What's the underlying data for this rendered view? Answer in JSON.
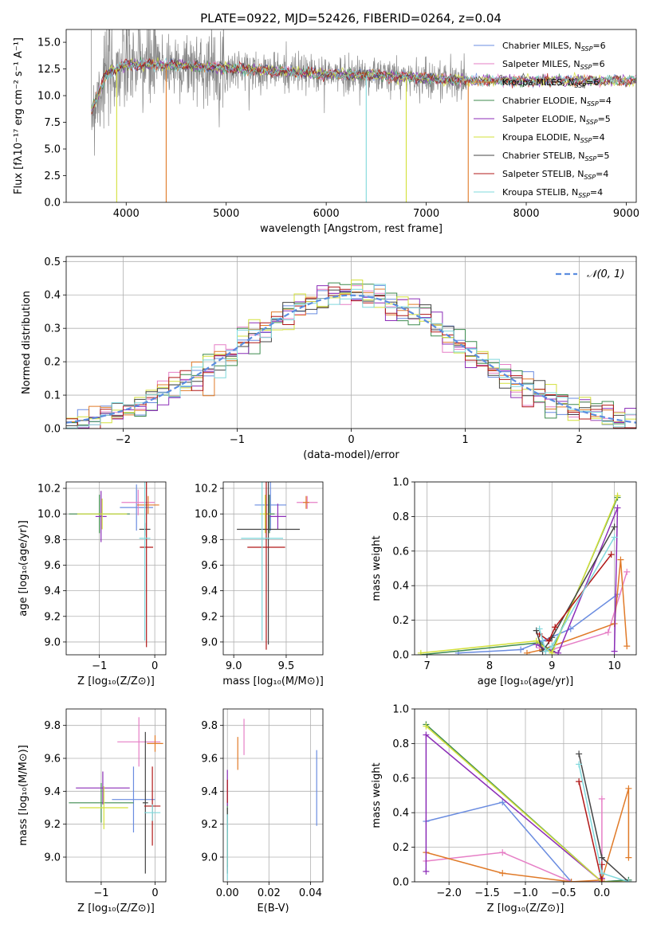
{
  "title": "PLATE=0922, MJD=52426, FIBERID=0264, z=0.04",
  "colors": {
    "Chabrier MILES": "#6a8ce0",
    "Salpeter MILES": "#e67fc6",
    "Kroupa MILES": "#e07a28",
    "Chabrier ELODIE": "#3d8a4e",
    "Salpeter ELODIE": "#8c2eb8",
    "Kroupa ELODIE": "#d3e03a",
    "Chabrier STELIB": "#444444",
    "Salpeter STELIB": "#b01818",
    "Kroupa STELIB": "#7fd8dc",
    "data": "#888888",
    "normal": "#5b8de0",
    "grid": "#b0b0b0"
  },
  "chart_data": [
    {
      "id": "spectrum",
      "type": "line",
      "title": "PLATE=0922, MJD=52426, FIBERID=0264, z=0.04",
      "xlabel": "wavelength [Angstrom, rest frame]",
      "ylabel": "Flux [fλ10⁻¹⁷ erg cm⁻² s⁻¹ A⁻¹]",
      "xlim": [
        3400,
        9100
      ],
      "ylim": [
        0,
        16.2
      ],
      "xticks": [
        4000,
        5000,
        6000,
        7000,
        8000,
        9000
      ],
      "yticks": [
        0.0,
        2.5,
        5.0,
        7.5,
        10.0,
        12.5,
        15.0
      ],
      "ytick_labels": [
        "0.0",
        "2.5",
        "5.0",
        "7.5",
        "10.0",
        "12.5",
        "15.0"
      ],
      "legend_position": "top-right",
      "legend": [
        {
          "name": "Chabrier MILES, N",
          "sub": "SSP",
          "tail": "=6"
        },
        {
          "name": "Salpeter MILES, N",
          "sub": "SSP",
          "tail": "=6"
        },
        {
          "name": "Kroupa MILES, N",
          "sub": "SSP",
          "tail": "=6"
        },
        {
          "name": "Chabrier ELODIE, N",
          "sub": "SSP",
          "tail": "=4"
        },
        {
          "name": "Salpeter ELODIE, N",
          "sub": "SSP",
          "tail": "=5"
        },
        {
          "name": "Kroupa ELODIE, N",
          "sub": "SSP",
          "tail": "=4"
        },
        {
          "name": "Chabrier STELIB, N",
          "sub": "SSP",
          "tail": "=5"
        },
        {
          "name": "Salpeter STELIB, N",
          "sub": "SSP",
          "tail": "=4"
        },
        {
          "name": "Kroupa STELIB, N",
          "sub": "SSP",
          "tail": "=4"
        }
      ],
      "continuum": {
        "x": [
          3650,
          3800,
          4000,
          4300,
          4600,
          5000,
          5500,
          6000,
          6500,
          7000,
          7400
        ],
        "y": [
          8.5,
          12.0,
          12.9,
          12.9,
          12.8,
          12.6,
          12.3,
          12.0,
          11.9,
          11.6,
          11.4
        ]
      },
      "data_extent": [
        3650,
        7400
      ],
      "model_extent": [
        3650,
        9100
      ],
      "drop_lines": [
        {
          "x": 3905,
          "series": "Kroupa ELODIE"
        },
        {
          "x": 4400,
          "series": "Kroupa MILES"
        },
        {
          "x": 6400,
          "series": "Kroupa STELIB"
        },
        {
          "x": 6800,
          "series": "Kroupa ELODIE"
        },
        {
          "x": 7420,
          "series": "Kroupa MILES"
        }
      ]
    },
    {
      "id": "residuals",
      "type": "histogram",
      "xlabel": "(data-model)/error",
      "ylabel": "Normed distribution",
      "xlim": [
        -2.5,
        2.5
      ],
      "ylim": [
        0,
        0.515
      ],
      "xticks": [
        -2,
        -1,
        0,
        1,
        2
      ],
      "xtick_labels": [
        "−2",
        "−1",
        "0",
        "1",
        "2"
      ],
      "yticks": [
        0.0,
        0.1,
        0.2,
        0.3,
        0.4,
        0.5
      ],
      "ytick_labels": [
        "0.0",
        "0.1",
        "0.2",
        "0.3",
        "0.4",
        "0.5"
      ],
      "bin_width": 0.1,
      "legend": "𝒩(0, 1)",
      "legend_position": "top-right"
    },
    {
      "id": "age_vs_Z",
      "type": "errorbar",
      "xlabel": "Z [log₁₀(Z/Z⊙)]",
      "ylabel": "age  [log₁₀(age/yr)]",
      "xlim": [
        -1.6,
        0.2
      ],
      "ylim": [
        8.9,
        10.25
      ],
      "xticks": [
        -1,
        0
      ],
      "xtick_labels": [
        "−1",
        "0"
      ],
      "yticks": [
        9.0,
        9.2,
        9.4,
        9.6,
        9.8,
        10.0,
        10.2
      ],
      "ytick_labels": [
        "9.0",
        "9.2",
        "9.4",
        "9.6",
        "9.8",
        "10.0",
        "10.2"
      ],
      "points": [
        {
          "series": "Chabrier MILES",
          "x": -0.33,
          "y": 10.05,
          "xerr": 0.3,
          "yerr": 0.18
        },
        {
          "series": "Salpeter MILES",
          "x": -0.3,
          "y": 10.09,
          "xerr": 0.3,
          "yerr": 0.1
        },
        {
          "series": "Kroupa MILES",
          "x": -0.12,
          "y": 10.07,
          "xerr": 0.2,
          "yerr": 0.07
        },
        {
          "series": "Chabrier ELODIE",
          "x": -1.0,
          "y": 10.0,
          "xerr": 0.55,
          "yerr": 0.15
        },
        {
          "series": "Salpeter ELODIE",
          "x": -0.97,
          "y": 9.98,
          "xerr": 0.1,
          "yerr": 0.2
        },
        {
          "series": "Kroupa ELODIE",
          "x": -0.95,
          "y": 10.0,
          "xerr": 0.45,
          "yerr": 0.12
        },
        {
          "series": "Chabrier STELIB",
          "x": -0.18,
          "y": 9.88,
          "xerr": 0.1,
          "yerr": 0.05
        },
        {
          "series": "Salpeter STELIB",
          "x": -0.15,
          "y": 9.74,
          "xerr": 0.12,
          "yerr": 0.78
        },
        {
          "series": "Kroupa STELIB",
          "x": -0.18,
          "y": 9.81,
          "xerr": 0.1,
          "yerr": 0.8
        }
      ]
    },
    {
      "id": "age_vs_mass",
      "type": "errorbar",
      "xlabel": "mass [log₁₀(M/M⊙)]",
      "ylabel": "",
      "xlim": [
        8.9,
        9.85
      ],
      "ylim": [
        8.9,
        10.25
      ],
      "xticks": [
        9.0,
        9.5
      ],
      "xtick_labels": [
        "9.0",
        "9.5"
      ],
      "yticks": [
        9.0,
        9.2,
        9.4,
        9.6,
        9.8,
        10.0,
        10.2
      ],
      "ytick_labels": [
        "9.0",
        "9.2",
        "9.4",
        "9.6",
        "9.8",
        "10.0",
        "10.2"
      ],
      "points": [
        {
          "series": "Chabrier MILES",
          "x": 9.35,
          "y": 10.07,
          "xerr": 0.15,
          "yerr": 0.2
        },
        {
          "series": "Salpeter MILES",
          "x": 9.7,
          "y": 10.09,
          "xerr": 0.1,
          "yerr": 0.05
        },
        {
          "series": "Kroupa MILES",
          "x": 9.69,
          "y": 10.09,
          "xerr": 0.03,
          "yerr": 0.05
        },
        {
          "series": "Chabrier ELODIE",
          "x": 9.34,
          "y": 10.0,
          "xerr": 0.05,
          "yerr": 0.15
        },
        {
          "series": "Salpeter ELODIE",
          "x": 9.42,
          "y": 9.98,
          "xerr": 0.08,
          "yerr": 0.1
        },
        {
          "series": "Kroupa ELODIE",
          "x": 9.3,
          "y": 10.0,
          "xerr": 0.05,
          "yerr": 0.15
        },
        {
          "series": "Chabrier STELIB",
          "x": 9.33,
          "y": 9.88,
          "xerr": 0.3,
          "yerr": 0.9
        },
        {
          "series": "Salpeter STELIB",
          "x": 9.31,
          "y": 9.74,
          "xerr": 0.18,
          "yerr": 0.8
        },
        {
          "series": "Kroupa STELIB",
          "x": 9.27,
          "y": 9.81,
          "xerr": 0.2,
          "yerr": 0.8
        }
      ]
    },
    {
      "id": "weight_vs_age",
      "type": "line",
      "xlabel": "age  [log₁₀(age/yr)]",
      "ylabel": "mass weight",
      "xlim": [
        6.8,
        10.35
      ],
      "ylim": [
        0,
        1.0
      ],
      "xticks": [
        7,
        8,
        9,
        10
      ],
      "xtick_labels": [
        "7",
        "8",
        "9",
        "10"
      ],
      "yticks": [
        0.0,
        0.2,
        0.4,
        0.6,
        0.8,
        1.0
      ],
      "ytick_labels": [
        "0.0",
        "0.2",
        "0.4",
        "0.6",
        "0.8",
        "1.0"
      ],
      "series": [
        {
          "name": "Chabrier MILES",
          "x": [
            7.5,
            8.5,
            8.85,
            9.3,
            10.05
          ],
          "y": [
            0.01,
            0.03,
            0.08,
            0.15,
            0.35
          ]
        },
        {
          "name": "Salpeter MILES",
          "x": [
            8.8,
            9.0,
            9.9,
            10.2
          ],
          "y": [
            0.04,
            0.03,
            0.13,
            0.48
          ]
        },
        {
          "name": "Kroupa MILES",
          "x": [
            8.6,
            8.85,
            10.0,
            10.1,
            10.2
          ],
          "y": [
            0.01,
            0.03,
            0.18,
            0.55,
            0.05
          ]
        },
        {
          "name": "Chabrier ELODIE",
          "x": [
            6.9,
            8.8,
            9.0,
            10.05
          ],
          "y": [
            0.0,
            0.07,
            0.02,
            0.91
          ]
        },
        {
          "name": "Salpeter ELODIE",
          "x": [
            8.75,
            8.9,
            9.1,
            10.05,
            10.0
          ],
          "y": [
            0.06,
            0.03,
            0.01,
            0.85,
            0.02
          ]
        },
        {
          "name": "Kroupa ELODIE",
          "x": [
            6.9,
            8.75,
            9.0,
            10.05
          ],
          "y": [
            0.01,
            0.08,
            0.01,
            0.92
          ]
        },
        {
          "name": "Chabrier STELIB",
          "x": [
            8.75,
            8.85,
            9.0,
            10.0
          ],
          "y": [
            0.14,
            0.02,
            0.1,
            0.74
          ]
        },
        {
          "name": "Salpeter STELIB",
          "x": [
            8.8,
            8.95,
            9.05,
            9.95
          ],
          "y": [
            0.12,
            0.08,
            0.16,
            0.58
          ]
        },
        {
          "name": "Kroupa STELIB",
          "x": [
            8.8,
            8.9,
            9.0,
            10.0
          ],
          "y": [
            0.15,
            0.02,
            0.05,
            0.68
          ]
        }
      ]
    },
    {
      "id": "mass_vs_Z",
      "type": "errorbar",
      "xlabel": "Z [log₁₀(Z/Z⊙)]",
      "ylabel": "mass [log₁₀(M/M⊙)]",
      "xlim": [
        -1.65,
        0.2
      ],
      "ylim": [
        8.85,
        9.9
      ],
      "xticks": [
        -1,
        0
      ],
      "xtick_labels": [
        "−1",
        "0"
      ],
      "yticks": [
        9.0,
        9.2,
        9.4,
        9.6,
        9.8
      ],
      "ytick_labels": [
        "9.0",
        "9.2",
        "9.4",
        "9.6",
        "9.8"
      ],
      "points": [
        {
          "series": "Chabrier MILES",
          "x": -0.4,
          "y": 9.35,
          "xerr": 0.4,
          "yerr": 0.2
        },
        {
          "series": "Salpeter MILES",
          "x": -0.3,
          "y": 9.7,
          "xerr": 0.4,
          "yerr": 0.15
        },
        {
          "series": "Kroupa MILES",
          "x": 0.0,
          "y": 9.69,
          "xerr": 0.15,
          "yerr": 0.05
        },
        {
          "series": "Chabrier ELODIE",
          "x": -1.0,
          "y": 9.33,
          "xerr": 0.6,
          "yerr": 0.12
        },
        {
          "series": "Salpeter ELODIE",
          "x": -0.97,
          "y": 9.42,
          "xerr": 0.5,
          "yerr": 0.1
        },
        {
          "series": "Kroupa ELODIE",
          "x": -0.95,
          "y": 9.3,
          "xerr": 0.45,
          "yerr": 0.13
        },
        {
          "series": "Chabrier STELIB",
          "x": -0.18,
          "y": 9.33,
          "xerr": 0.05,
          "yerr": 0.43
        },
        {
          "series": "Salpeter STELIB",
          "x": -0.05,
          "y": 9.31,
          "xerr": 0.15,
          "yerr": 0.24
        },
        {
          "series": "Kroupa STELIB",
          "x": -0.05,
          "y": 9.27,
          "xerr": 0.15,
          "yerr": 0.05
        }
      ]
    },
    {
      "id": "mass_vs_ebv",
      "type": "errorbar",
      "xlabel": "E(B-V)",
      "ylabel": "",
      "xlim": [
        -0.002,
        0.046
      ],
      "ylim": [
        8.85,
        9.9
      ],
      "xticks": [
        0.0,
        0.02,
        0.04
      ],
      "xtick_labels": [
        "0.00",
        "0.02",
        "0.04"
      ],
      "yticks": [
        9.0,
        9.2,
        9.4,
        9.6,
        9.8
      ],
      "ytick_labels": [
        "9.0",
        "9.2",
        "9.4",
        "9.6",
        "9.8"
      ],
      "points": [
        {
          "series": "Chabrier MILES",
          "x": 0.043,
          "y": 9.42,
          "xerr": 0,
          "yerr": 0.23
        },
        {
          "series": "Salpeter MILES",
          "x": 0.008,
          "y": 9.73,
          "xerr": 0,
          "yerr": 0.11
        },
        {
          "series": "Kroupa MILES",
          "x": 0.005,
          "y": 9.63,
          "xerr": 0,
          "yerr": 0.1
        },
        {
          "series": "Chabrier ELODIE",
          "x": 0.0,
          "y": 9.14,
          "xerr": 0,
          "yerr": 0.2
        },
        {
          "series": "Salpeter ELODIE",
          "x": 0.0,
          "y": 9.42,
          "xerr": 0,
          "yerr": 0.11
        },
        {
          "series": "Kroupa ELODIE",
          "x": 0.0,
          "y": 9.05,
          "xerr": 0,
          "yerr": 0.1
        },
        {
          "series": "Chabrier STELIB",
          "x": 0.0,
          "y": 9.1,
          "xerr": 0,
          "yerr": 0.2
        },
        {
          "series": "Salpeter STELIB",
          "x": 0.0,
          "y": 9.4,
          "xerr": 0,
          "yerr": 0.07
        },
        {
          "series": "Kroupa STELIB",
          "x": 0.0,
          "y": 9.06,
          "xerr": 0,
          "yerr": 0.2
        }
      ]
    },
    {
      "id": "weight_vs_Z",
      "type": "line",
      "xlabel": "Z [log₁₀(Z/Z⊙)]",
      "ylabel": "mass weight",
      "xlim": [
        -2.45,
        0.45
      ],
      "ylim": [
        0,
        1.0
      ],
      "xticks": [
        -2.0,
        -1.5,
        -1.0,
        -0.5,
        0.0
      ],
      "xtick_labels": [
        "−2.0",
        "−1.5",
        "−1.0",
        "−0.5",
        "0.0"
      ],
      "yticks": [
        0.0,
        0.2,
        0.4,
        0.6,
        0.8,
        1.0
      ],
      "ytick_labels": [
        "0.0",
        "0.2",
        "0.4",
        "0.6",
        "0.8",
        "1.0"
      ],
      "series": [
        {
          "name": "Chabrier MILES",
          "x": [
            -2.3,
            -1.3,
            -0.4,
            0.0,
            0.35
          ],
          "y": [
            0.35,
            0.46,
            0.0,
            0.0,
            0.01
          ]
        },
        {
          "name": "Salpeter MILES",
          "x": [
            -2.3,
            -1.3,
            -0.4,
            0.0,
            0.0
          ],
          "y": [
            0.12,
            0.17,
            0.0,
            0.0,
            0.48
          ]
        },
        {
          "name": "Kroupa MILES",
          "x": [
            -2.3,
            -1.3,
            -0.4,
            0.0,
            0.35,
            0.35
          ],
          "y": [
            0.17,
            0.05,
            0.0,
            0.01,
            0.54,
            0.14
          ]
        },
        {
          "name": "Chabrier ELODIE",
          "x": [
            -2.3,
            0.0,
            0.35
          ],
          "y": [
            0.91,
            0.0,
            0.01
          ]
        },
        {
          "name": "Salpeter ELODIE",
          "x": [
            -2.3,
            -2.3,
            0.0,
            0.0
          ],
          "y": [
            0.06,
            0.85,
            0.0,
            0.02
          ]
        },
        {
          "name": "Kroupa ELODIE",
          "x": [
            -2.3,
            0.0,
            0.35
          ],
          "y": [
            0.9,
            0.0,
            0.0
          ]
        },
        {
          "name": "Chabrier STELIB",
          "x": [
            -0.3,
            0.0,
            0.35
          ],
          "y": [
            0.74,
            0.14,
            0.0
          ]
        },
        {
          "name": "Salpeter STELIB",
          "x": [
            -0.3,
            0.0,
            0.0
          ],
          "y": [
            0.58,
            0.0,
            0.1
          ]
        },
        {
          "name": "Kroupa STELIB",
          "x": [
            -0.3,
            0.0,
            0.35
          ],
          "y": [
            0.68,
            0.05,
            0.0
          ]
        }
      ]
    }
  ]
}
